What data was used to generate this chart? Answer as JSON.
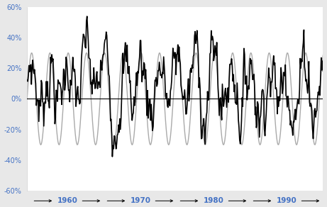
{
  "background_color": "#e8e8e8",
  "plot_bg_color": "#ffffff",
  "ylim": [
    -0.6,
    0.6
  ],
  "yticks": [
    -0.6,
    -0.4,
    -0.2,
    0.0,
    0.2,
    0.4,
    0.6
  ],
  "ytick_labels": [
    "-60%",
    "-40%",
    "-20%",
    "0%",
    "20%",
    "40%",
    "60%"
  ],
  "sine_amplitude": 0.3,
  "sine_period_years": 2.5,
  "sine_color": "#aaaaaa",
  "sine_linewidth": 1.0,
  "noisy_color": "#000000",
  "noisy_linewidth": 1.2,
  "hline_color": "#000000",
  "hline_linewidth": 0.8,
  "start_year": 1956.0,
  "end_year": 1996.5,
  "decade_label_color": "#4472c4",
  "arrow_color": "#000000",
  "random_seed": 7,
  "noise_scale": 0.08,
  "mean_level": 0.12,
  "ar_coeff": 0.85,
  "num_points": 480,
  "decade_configs": [
    [
      1956.5,
      1966.5,
      "1960"
    ],
    [
      1966.5,
      1976.5,
      "1970"
    ],
    [
      1976.5,
      1986.5,
      "1980"
    ],
    [
      1986.5,
      1996.5,
      "1990"
    ]
  ]
}
